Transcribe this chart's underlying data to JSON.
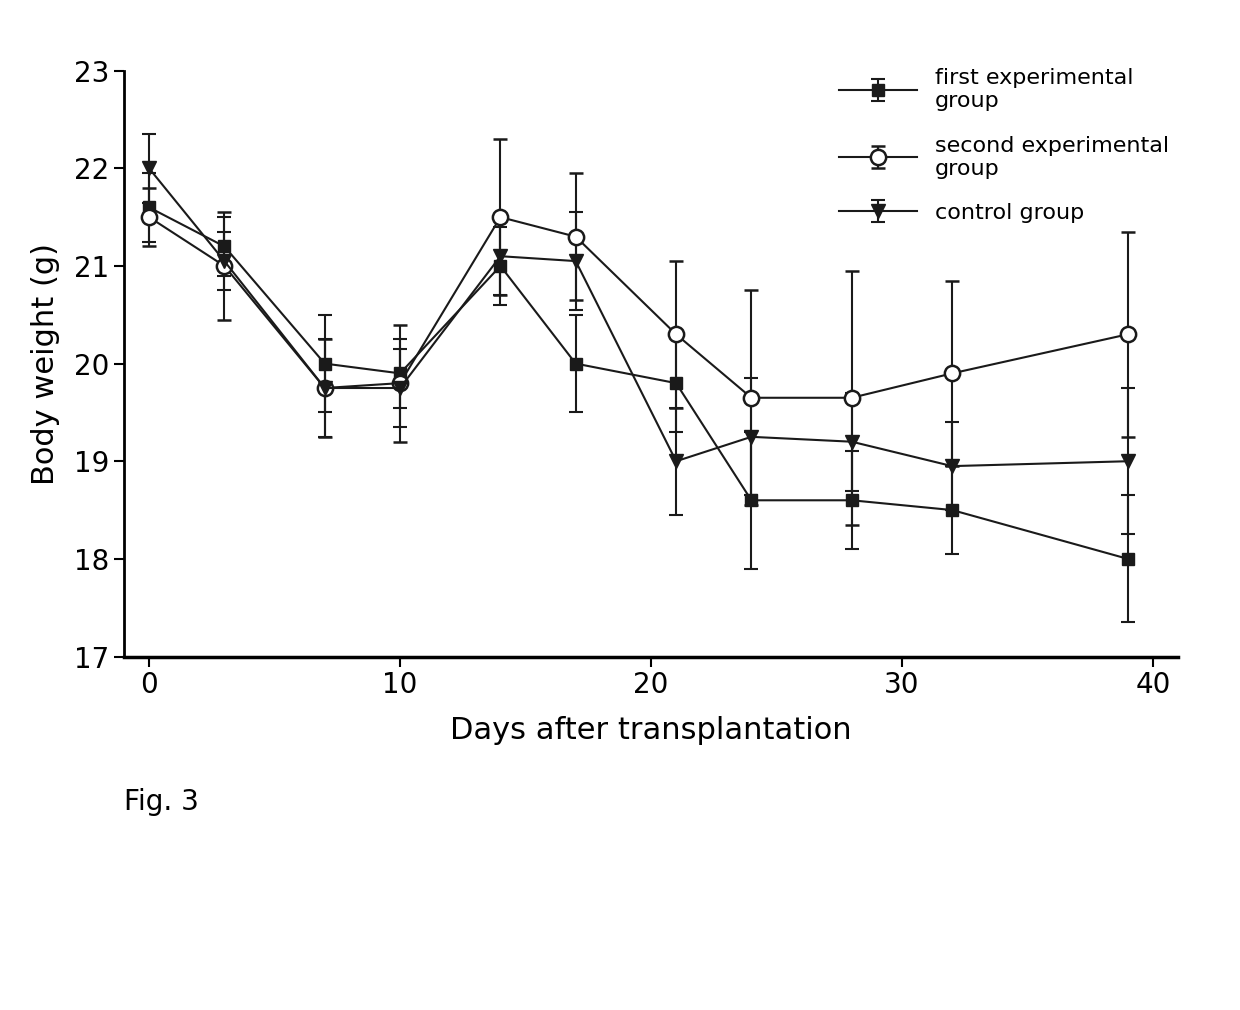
{
  "x": [
    0,
    3,
    7,
    10,
    14,
    17,
    21,
    24,
    28,
    32,
    39
  ],
  "group1_y": [
    21.6,
    21.2,
    20.0,
    19.9,
    21.0,
    20.0,
    19.8,
    18.6,
    18.6,
    18.5,
    18.0
  ],
  "group1_err": [
    0.35,
    0.3,
    0.5,
    0.35,
    0.4,
    0.5,
    0.5,
    0.7,
    0.5,
    0.45,
    0.65
  ],
  "group2_y": [
    21.5,
    21.0,
    19.75,
    19.8,
    21.5,
    21.3,
    20.3,
    19.65,
    19.65,
    19.9,
    20.3
  ],
  "group2_err": [
    0.3,
    0.55,
    0.5,
    0.6,
    0.8,
    0.65,
    0.75,
    1.1,
    1.3,
    0.95,
    1.05
  ],
  "group3_y": [
    22.0,
    21.05,
    19.75,
    19.75,
    21.1,
    21.05,
    19.0,
    19.25,
    19.2,
    18.95,
    19.0
  ],
  "group3_err": [
    0.35,
    0.3,
    0.5,
    0.4,
    0.4,
    0.5,
    0.55,
    0.6,
    0.5,
    0.45,
    0.75
  ],
  "xlabel": "Days after transplantation",
  "ylabel": "Body weight (g)",
  "ylim": [
    17,
    23
  ],
  "xlim": [
    -1,
    41
  ],
  "yticks": [
    17,
    18,
    19,
    20,
    21,
    22,
    23
  ],
  "xticks": [
    0,
    10,
    20,
    30,
    40
  ],
  "legend_labels": [
    "first experimental\ngroup",
    "second experimental\ngroup",
    "control group"
  ],
  "fig_label": "Fig. 3",
  "line_color": "#1a1a1a",
  "background_color": "#ffffff"
}
